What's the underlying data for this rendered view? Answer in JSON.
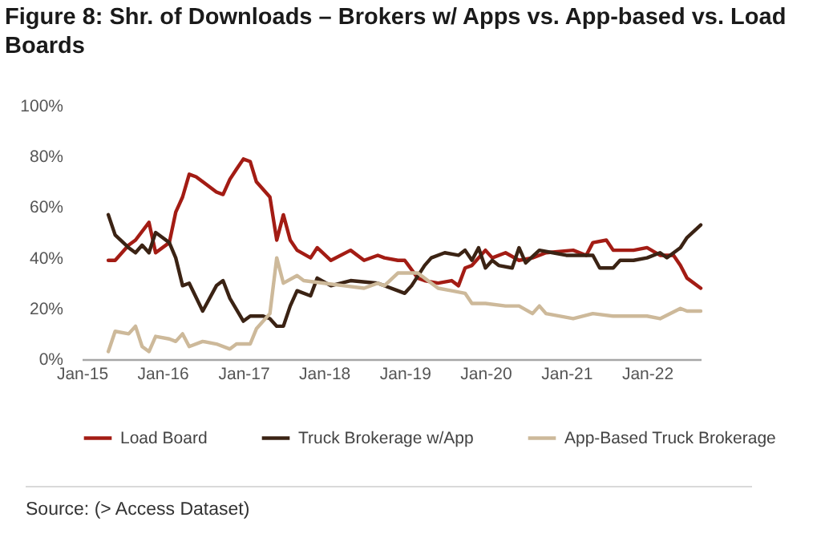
{
  "chart_data": {
    "type": "line",
    "title": "Figure 8: Shr. of Downloads – Brokers w/ Apps vs. App-based vs. Load Boards",
    "xlim": [
      "2015-01",
      "2022-09"
    ],
    "xticks": [
      {
        "value": "2015-01",
        "label": "Jan-15"
      },
      {
        "value": "2016-01",
        "label": "Jan-16"
      },
      {
        "value": "2017-01",
        "label": "Jan-17"
      },
      {
        "value": "2018-01",
        "label": "Jan-18"
      },
      {
        "value": "2019-01",
        "label": "Jan-19"
      },
      {
        "value": "2020-01",
        "label": "Jan-20"
      },
      {
        "value": "2021-01",
        "label": "Jan-21"
      },
      {
        "value": "2022-01",
        "label": "Jan-22"
      }
    ],
    "ylim": [
      0,
      100
    ],
    "yticks": [
      {
        "value": 0,
        "label": "0%"
      },
      {
        "value": 20,
        "label": "20%"
      },
      {
        "value": 40,
        "label": "40%"
      },
      {
        "value": 60,
        "label": "60%"
      },
      {
        "value": 80,
        "label": "80%"
      },
      {
        "value": 100,
        "label": "100%"
      }
    ],
    "legend": "bottom",
    "series": [
      {
        "name": "Load Board",
        "color": "#a31c14",
        "x": [
          "2015-05",
          "2015-06",
          "2015-08",
          "2015-09",
          "2015-11",
          "2015-12",
          "2016-02",
          "2016-03",
          "2016-04",
          "2016-05",
          "2016-06",
          "2016-09",
          "2016-10",
          "2016-11",
          "2016-12",
          "2017-01",
          "2017-02",
          "2017-03",
          "2017-05",
          "2017-06",
          "2017-07",
          "2017-08",
          "2017-09",
          "2017-11",
          "2017-12",
          "2018-02",
          "2018-05",
          "2018-07",
          "2018-09",
          "2018-10",
          "2018-12",
          "2019-01",
          "2019-03",
          "2019-04",
          "2019-06",
          "2019-08",
          "2019-09",
          "2019-10",
          "2019-11",
          "2020-01",
          "2020-02",
          "2020-04",
          "2020-06",
          "2020-08",
          "2020-10",
          "2021-02",
          "2021-04",
          "2021-05",
          "2021-07",
          "2021-08",
          "2021-11",
          "2022-01",
          "2022-03",
          "2022-05",
          "2022-06",
          "2022-07",
          "2022-09"
        ],
        "values": [
          39,
          39,
          45,
          47,
          54,
          42,
          46,
          58,
          64,
          73,
          72,
          66,
          65,
          71,
          75,
          79,
          78,
          70,
          64,
          47,
          57,
          47,
          43,
          40,
          44,
          39,
          43,
          39,
          41,
          40,
          39,
          39,
          32,
          31,
          30,
          31,
          29,
          36,
          37,
          43,
          40,
          42,
          39,
          40,
          42,
          43,
          41,
          46,
          47,
          43,
          43,
          44,
          41,
          41,
          37,
          32,
          28
        ]
      },
      {
        "name": "Truck Brokerage w/App",
        "color": "#3b2314",
        "x": [
          "2015-05",
          "2015-06",
          "2015-08",
          "2015-09",
          "2015-10",
          "2015-11",
          "2015-12",
          "2016-01",
          "2016-02",
          "2016-03",
          "2016-04",
          "2016-05",
          "2016-07",
          "2016-09",
          "2016-10",
          "2016-11",
          "2017-01",
          "2017-02",
          "2017-04",
          "2017-05",
          "2017-06",
          "2017-07",
          "2017-08",
          "2017-09",
          "2017-11",
          "2017-12",
          "2018-02",
          "2018-05",
          "2018-09",
          "2018-12",
          "2019-01",
          "2019-02",
          "2019-04",
          "2019-05",
          "2019-07",
          "2019-09",
          "2019-10",
          "2019-11",
          "2019-12",
          "2020-01",
          "2020-02",
          "2020-03",
          "2020-05",
          "2020-06",
          "2020-07",
          "2020-09",
          "2020-11",
          "2021-01",
          "2021-05",
          "2021-06",
          "2021-08",
          "2021-09",
          "2021-11",
          "2022-01",
          "2022-03",
          "2022-04",
          "2022-06",
          "2022-07",
          "2022-09"
        ],
        "values": [
          57,
          49,
          44,
          42,
          45,
          42,
          50,
          48,
          46,
          40,
          29,
          30,
          19,
          29,
          31,
          24,
          15,
          17,
          17,
          16,
          13,
          13,
          21,
          27,
          25,
          32,
          29,
          31,
          30,
          27,
          26,
          29,
          37,
          40,
          42,
          41,
          43,
          39,
          44,
          36,
          39,
          37,
          36,
          44,
          38,
          43,
          42,
          41,
          41,
          36,
          36,
          39,
          39,
          40,
          42,
          40,
          44,
          48,
          53
        ]
      },
      {
        "name": "App-Based Truck Brokerage",
        "color": "#cdb99a",
        "x": [
          "2015-05",
          "2015-06",
          "2015-08",
          "2015-09",
          "2015-10",
          "2015-11",
          "2015-12",
          "2016-02",
          "2016-03",
          "2016-04",
          "2016-05",
          "2016-07",
          "2016-09",
          "2016-11",
          "2016-12",
          "2017-02",
          "2017-03",
          "2017-05",
          "2017-06",
          "2017-07",
          "2017-09",
          "2017-10",
          "2018-01",
          "2018-04",
          "2018-07",
          "2018-09",
          "2018-10",
          "2018-12",
          "2019-02",
          "2019-03",
          "2019-06",
          "2019-08",
          "2019-10",
          "2019-11",
          "2020-01",
          "2020-04",
          "2020-06",
          "2020-08",
          "2020-09",
          "2020-10",
          "2021-02",
          "2021-05",
          "2021-08",
          "2022-01",
          "2022-03",
          "2022-06",
          "2022-07",
          "2022-09"
        ],
        "values": [
          3,
          11,
          10,
          13,
          5,
          3,
          9,
          8,
          7,
          10,
          5,
          7,
          6,
          4,
          6,
          6,
          12,
          18,
          40,
          30,
          33,
          31,
          30,
          29,
          28,
          30,
          29,
          34,
          34,
          34,
          28,
          27,
          26,
          22,
          22,
          21,
          21,
          18,
          21,
          18,
          16,
          18,
          17,
          17,
          16,
          20,
          19,
          19
        ]
      }
    ],
    "annotations": [
      "Source: (> Access Dataset)"
    ]
  }
}
